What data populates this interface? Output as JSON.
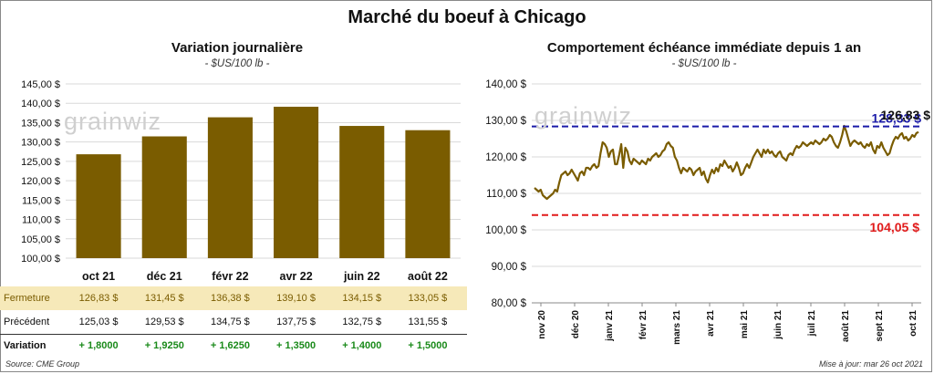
{
  "title": "Marché du boeuf à Chicago",
  "watermark": "grainwiz",
  "source": "Source: CME Group",
  "updated": "Mise à jour: mar 26 oct 2021",
  "table": {
    "row_labels": {
      "close": "Fermeture",
      "previous": "Précédent",
      "change": "Variation"
    },
    "close": [
      "126,83  $",
      "131,45  $",
      "136,38  $",
      "139,10  $",
      "134,15  $",
      "133,05  $"
    ],
    "previous": [
      "125,03  $",
      "129,53  $",
      "134,75  $",
      "137,75  $",
      "132,75  $",
      "131,55  $"
    ],
    "change": [
      "+ 1,8000",
      "+ 1,9250",
      "+ 1,6250",
      "+ 1,3500",
      "+ 1,4000",
      "+ 1,5000"
    ]
  },
  "chart_data": [
    {
      "type": "bar",
      "title": "Variation  journalière",
      "subtitle": "- $US/100 lb -",
      "categories": [
        "oct 21",
        "déc 21",
        "févr 22",
        "avr 22",
        "juin 22",
        "août 22"
      ],
      "values": [
        126.83,
        131.45,
        136.38,
        139.1,
        134.15,
        133.05
      ],
      "ylim": [
        100,
        145
      ],
      "yticks": [
        "100,00 $",
        "105,00 $",
        "110,00 $",
        "115,00 $",
        "120,00 $",
        "125,00 $",
        "130,00 $",
        "135,00 $",
        "140,00 $",
        "145,00 $"
      ],
      "color": "#7a5c00",
      "grid": true
    },
    {
      "type": "line",
      "title": "Comportement  échéance immédiate depuis 1 an",
      "subtitle": "- $US/100 lb -",
      "ylim": [
        80,
        140
      ],
      "yticks": [
        "80,00 $",
        "90,00 $",
        "100,00 $",
        "110,00 $",
        "120,00 $",
        "130,00 $",
        "140,00 $"
      ],
      "xticks": [
        "nov 20",
        "déc 20",
        "janv 21",
        "févr 21",
        "mars 21",
        "avr 21",
        "mai 21",
        "juin 21",
        "juil 21",
        "août 21",
        "sept 21",
        "oct 21"
      ],
      "series_color": "#7a5c00",
      "values": [
        111.5,
        111,
        110.5,
        111,
        109.5,
        109,
        108.5,
        109,
        109.5,
        110,
        111,
        110.5,
        113,
        115,
        115.5,
        116,
        115,
        115.5,
        116.5,
        115.5,
        114.5,
        113.5,
        115.5,
        116,
        115,
        117,
        117,
        116.5,
        117.5,
        118,
        117,
        117.5,
        121,
        124,
        123.5,
        122.5,
        120,
        121.5,
        122,
        118,
        118,
        120.5,
        123.5,
        117,
        122.5,
        121.5,
        119,
        118,
        119.5,
        119,
        118.5,
        118,
        119,
        118.5,
        118,
        119.5,
        119,
        120,
        120.5,
        121,
        120,
        120.5,
        121.5,
        122,
        123.5,
        124,
        123,
        122.5,
        120,
        119,
        117,
        115.5,
        117,
        116.5,
        116,
        117,
        116.5,
        115,
        116,
        116.5,
        117,
        115,
        116,
        114,
        113,
        115,
        116.5,
        115.5,
        117,
        116,
        118,
        117.5,
        119,
        118,
        117,
        117.5,
        116,
        117,
        118.5,
        117,
        115,
        115.5,
        117,
        118,
        117,
        118.5,
        120,
        121,
        122,
        121,
        120,
        122,
        121,
        122,
        121,
        121.5,
        120.5,
        120,
        121,
        121.5,
        120,
        119.5,
        119,
        120.5,
        121,
        120.5,
        122,
        123,
        122.5,
        123,
        124,
        123.5,
        123,
        123.5,
        124,
        123.5,
        124.5,
        124,
        123.5,
        124,
        125,
        124.5,
        125,
        126,
        125.5,
        124,
        123,
        122.5,
        124,
        126,
        128.5,
        127,
        125,
        123,
        124,
        124.5,
        124,
        123.5,
        124,
        123,
        122.5,
        123.5,
        123,
        124,
        122,
        121,
        123,
        122.5,
        124,
        122.5,
        121.5,
        120.5,
        121,
        123,
        124.5,
        125.5,
        125,
        126,
        126.5,
        125,
        125.5,
        124.5,
        125,
        126,
        125.5,
        126.5,
        126.83
      ],
      "lines": [
        {
          "label": "128,33 $",
          "value": 128.33,
          "color": "#1a1aa8",
          "style": "dashed"
        },
        {
          "label": "104,05 $",
          "value": 104.05,
          "color": "#e11a1a",
          "style": "dashed"
        }
      ],
      "last_label": "126,83 $",
      "grid": true
    }
  ]
}
